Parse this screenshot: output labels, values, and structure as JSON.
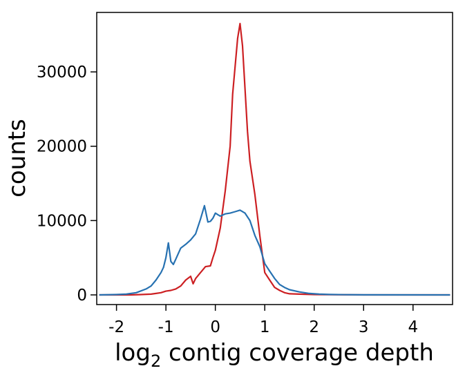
{
  "chart_data": {
    "type": "line",
    "title": "",
    "xlabel_main": "log",
    "xlabel_sub": "2",
    "xlabel_rest": " contig coverage depth",
    "ylabel": "counts",
    "xlim": [
      -2.4,
      4.8
    ],
    "ylim": [
      -1300,
      38000
    ],
    "x_ticks": [
      -2,
      -1,
      0,
      1,
      2,
      3,
      4
    ],
    "x_tick_labels": [
      "-2",
      "-1",
      "0",
      "1",
      "2",
      "3",
      "4"
    ],
    "y_ticks": [
      0,
      10000,
      20000,
      30000
    ],
    "y_tick_labels": [
      "0",
      "10000",
      "20000",
      "30000"
    ],
    "grid": false,
    "legend": "none",
    "series": [
      {
        "color": "#cc1f22",
        "points": [
          [
            -2.35,
            0
          ],
          [
            -2.0,
            0
          ],
          [
            -1.7,
            0
          ],
          [
            -1.5,
            50
          ],
          [
            -1.3,
            100
          ],
          [
            -1.2,
            200
          ],
          [
            -1.1,
            300
          ],
          [
            -1.0,
            500
          ],
          [
            -0.9,
            600
          ],
          [
            -0.8,
            800
          ],
          [
            -0.7,
            1200
          ],
          [
            -0.6,
            2000
          ],
          [
            -0.5,
            2500
          ],
          [
            -0.45,
            1500
          ],
          [
            -0.4,
            2200
          ],
          [
            -0.3,
            3000
          ],
          [
            -0.2,
            3800
          ],
          [
            -0.1,
            3900
          ],
          [
            -0.05,
            5000
          ],
          [
            0.0,
            6000
          ],
          [
            0.1,
            9000
          ],
          [
            0.2,
            14000
          ],
          [
            0.3,
            20000
          ],
          [
            0.35,
            27000
          ],
          [
            0.45,
            34500
          ],
          [
            0.5,
            36500
          ],
          [
            0.55,
            33500
          ],
          [
            0.65,
            22000
          ],
          [
            0.7,
            18000
          ],
          [
            0.8,
            13500
          ],
          [
            0.9,
            8000
          ],
          [
            1.0,
            3000
          ],
          [
            1.1,
            2000
          ],
          [
            1.2,
            1000
          ],
          [
            1.3,
            600
          ],
          [
            1.4,
            300
          ],
          [
            1.5,
            150
          ],
          [
            1.7,
            100
          ],
          [
            2.0,
            50
          ],
          [
            3.0,
            0
          ],
          [
            4.75,
            0
          ]
        ]
      },
      {
        "color": "#2671b1",
        "points": [
          [
            -2.35,
            0
          ],
          [
            -2.0,
            50
          ],
          [
            -1.8,
            100
          ],
          [
            -1.6,
            300
          ],
          [
            -1.4,
            800
          ],
          [
            -1.3,
            1200
          ],
          [
            -1.2,
            2000
          ],
          [
            -1.1,
            3000
          ],
          [
            -1.05,
            3700
          ],
          [
            -1.0,
            5000
          ],
          [
            -0.95,
            7000
          ],
          [
            -0.9,
            4500
          ],
          [
            -0.85,
            4100
          ],
          [
            -0.8,
            4800
          ],
          [
            -0.7,
            6300
          ],
          [
            -0.6,
            6800
          ],
          [
            -0.5,
            7400
          ],
          [
            -0.4,
            8200
          ],
          [
            -0.3,
            10200
          ],
          [
            -0.22,
            12000
          ],
          [
            -0.15,
            9800
          ],
          [
            -0.1,
            9900
          ],
          [
            -0.05,
            10300
          ],
          [
            0.0,
            11000
          ],
          [
            0.05,
            10800
          ],
          [
            0.1,
            10600
          ],
          [
            0.2,
            10900
          ],
          [
            0.3,
            11000
          ],
          [
            0.4,
            11200
          ],
          [
            0.5,
            11400
          ],
          [
            0.6,
            11000
          ],
          [
            0.7,
            10000
          ],
          [
            0.8,
            8000
          ],
          [
            0.9,
            6500
          ],
          [
            1.0,
            4200
          ],
          [
            1.1,
            3200
          ],
          [
            1.2,
            2200
          ],
          [
            1.3,
            1400
          ],
          [
            1.4,
            1000
          ],
          [
            1.5,
            700
          ],
          [
            1.7,
            400
          ],
          [
            1.9,
            200
          ],
          [
            2.1,
            100
          ],
          [
            2.3,
            60
          ],
          [
            2.6,
            30
          ],
          [
            3.0,
            10
          ],
          [
            4.75,
            0
          ]
        ]
      }
    ]
  }
}
